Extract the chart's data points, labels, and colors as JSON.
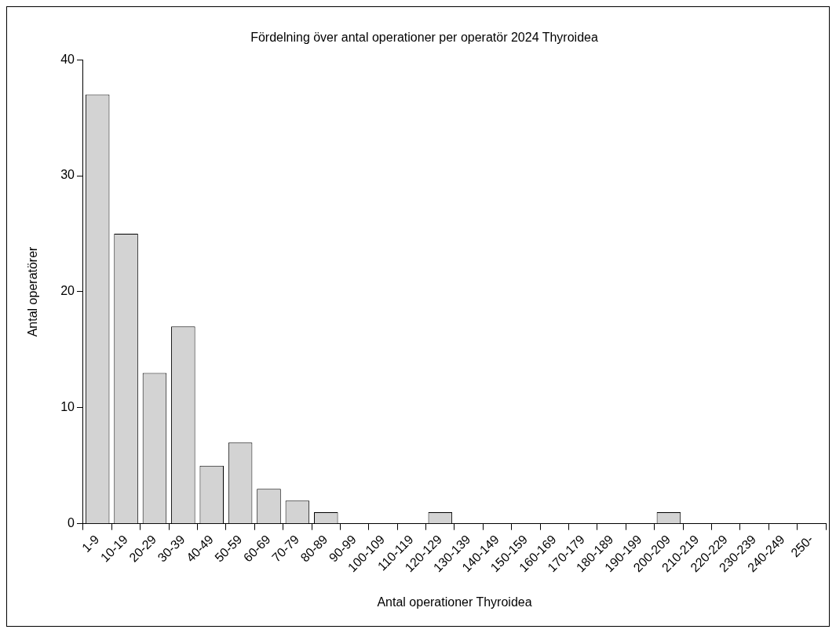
{
  "chart_data": {
    "type": "bar",
    "title": "Fördelning över antal operationer per operatör 2024 Thyroidea",
    "xlabel": "Antal operationer Thyroidea",
    "ylabel": "Antal operatörer",
    "categories": [
      "1-9",
      "10-19",
      "20-29",
      "30-39",
      "40-49",
      "50-59",
      "60-69",
      "70-79",
      "80-89",
      "90-99",
      "100-109",
      "110-119",
      "120-129",
      "130-139",
      "140-149",
      "150-159",
      "160-169",
      "170-179",
      "180-189",
      "190-199",
      "200-209",
      "210-219",
      "220-229",
      "230-239",
      "240-249",
      "250-"
    ],
    "values": [
      37,
      25,
      13,
      17,
      5,
      7,
      3,
      2,
      1,
      0,
      0,
      0,
      1,
      0,
      0,
      0,
      0,
      0,
      0,
      0,
      1,
      0,
      0,
      0,
      0,
      0
    ],
    "color": "#d3d3d3",
    "ylim": [
      0,
      40
    ],
    "yticks": [
      0,
      10,
      20,
      30,
      40
    ],
    "grid": false,
    "legend": false
  }
}
